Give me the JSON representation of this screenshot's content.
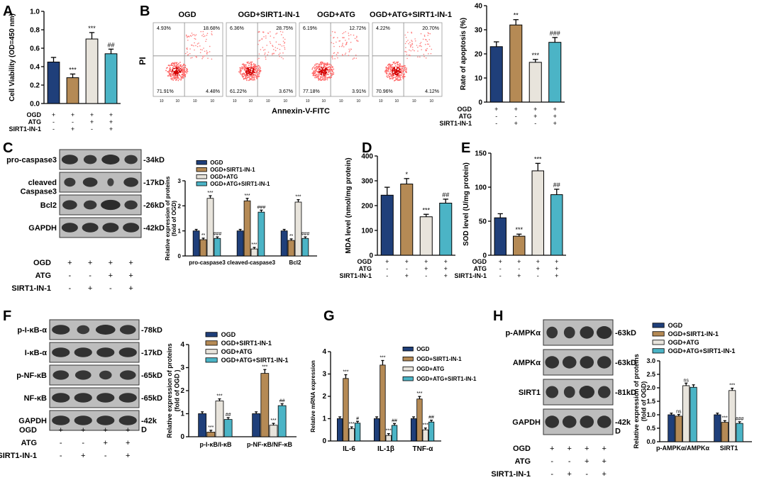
{
  "colors": {
    "OGD": "#1f3f7a",
    "OGD+SIRT1-IN-1": "#b58a55",
    "OGD+ATG": "#e8e1d2",
    "OGD+ATG+SIRT1-IN-1": "#4bb4c6",
    "white_bar": "#e8e4dc"
  },
  "groups": [
    "OGD",
    "OGD+SIRT1-IN-1",
    "OGD+ATG",
    "OGD+ATG+SIRT1-IN-1"
  ],
  "treatment_rows": {
    "labels": [
      "OGD",
      "ATG",
      "SIRT1-IN-1"
    ],
    "signs": [
      [
        "+",
        "+",
        "+",
        "+"
      ],
      [
        "-",
        "-",
        "+",
        "+"
      ],
      [
        "-",
        "+",
        "-",
        "+"
      ]
    ]
  },
  "panels": {
    "A": {
      "letter": "A"
    },
    "B": {
      "letter": "B",
      "flow_titles": [
        "OGD",
        "OGD+SIRT1-IN-1",
        "OGD+ATG",
        "OGD+ATG+SIRT1-IN-1"
      ],
      "quadrants": [
        [
          "4.93%",
          "18.68%",
          "71.91%",
          "4.48%"
        ],
        [
          "6.36%",
          "28.75%",
          "61.22%",
          "3.67%"
        ],
        [
          "6.19%",
          "12.72%",
          "77.18%",
          "3.91%"
        ],
        [
          "4.22%",
          "20.70%",
          "70.96%",
          "4.12%"
        ]
      ],
      "y_axis": "PI",
      "x_axis": "Annexin-V-FITC",
      "tick": "10"
    },
    "C": {
      "letter": "C",
      "blot_labels": [
        "pro-caspase3",
        "cleaved\nCaspase3",
        "Bcl2",
        "GAPDH"
      ],
      "kd": [
        "-34kD",
        "-17kD",
        "-26kD",
        "-42kD"
      ],
      "legend": [
        "OGD",
        "OGD+SIRT1-IN-1",
        "OGD+ATG",
        "OGD+ATG+SIRT1-IN-1"
      ]
    },
    "D": {
      "letter": "D"
    },
    "E": {
      "letter": "E"
    },
    "F": {
      "letter": "F",
      "blot_labels": [
        "p-I-κB-α",
        "I-κB-α",
        "p-NF-κB",
        "NF-κB",
        "GAPDH"
      ],
      "kd": [
        "-78kD",
        "-17kD",
        "-65kD",
        "-65kD",
        "-42k\nD"
      ]
    },
    "G": {
      "letter": "G"
    },
    "H": {
      "letter": "H",
      "blot_labels": [
        "p-AMPKα",
        "AMPKα",
        "SIRT1",
        "GAPDH"
      ],
      "kd": [
        "-63kD",
        "-63kD",
        "-81kD",
        "-42k\nD"
      ]
    }
  },
  "chart_data": [
    {
      "id": "A",
      "type": "bar",
      "ylabel": "Cell Viability (OD=450 nm)",
      "ylim": [
        0,
        1.0
      ],
      "yticks": [
        "0.0",
        "0.2",
        "0.4",
        "0.6",
        "0.8",
        "1.0"
      ],
      "values": [
        0.45,
        0.28,
        0.7,
        0.54
      ],
      "errors": [
        0.05,
        0.04,
        0.07,
        0.05
      ],
      "annotations": [
        "",
        "***",
        "***",
        "##"
      ]
    },
    {
      "id": "B",
      "type": "bar",
      "ylabel": "Rate of apoptosis (%)",
      "ylim": [
        0,
        40
      ],
      "yticks": [
        "0",
        "10",
        "20",
        "30",
        "40"
      ],
      "values": [
        23,
        32,
        16.5,
        24.8
      ],
      "errors": [
        2,
        2.2,
        1.2,
        2
      ],
      "annotations": [
        "",
        "**",
        "***",
        "###"
      ]
    },
    {
      "id": "C",
      "type": "bar",
      "ylabel": "Relative expression of proteins\n(fold of OGD)",
      "ylim": [
        0,
        3
      ],
      "yticks": [
        "0",
        "1",
        "2",
        "3"
      ],
      "categories": [
        "pro-caspase3",
        "cleaved-caspase3",
        "Bcl2"
      ],
      "series": [
        {
          "name": "OGD",
          "values": [
            1,
            1,
            1
          ]
        },
        {
          "name": "OGD+SIRT1-IN-1",
          "values": [
            0.65,
            2.2,
            0.62
          ]
        },
        {
          "name": "OGD+ATG",
          "values": [
            2.3,
            0.28,
            2.15
          ]
        },
        {
          "name": "OGD+ATG+SIRT1-IN-1",
          "values": [
            0.7,
            1.75,
            0.7
          ]
        }
      ],
      "annotations": [
        [
          "",
          "**",
          "***",
          "###"
        ],
        [
          "",
          "***",
          "***",
          "###"
        ],
        [
          "",
          "**",
          "***",
          "###"
        ]
      ]
    },
    {
      "id": "D",
      "type": "bar",
      "ylabel": "MDA level (nmol/mg protein)",
      "ylim": [
        0,
        400
      ],
      "yticks": [
        "0",
        "100",
        "200",
        "300",
        "400"
      ],
      "values": [
        242,
        287,
        155,
        210
      ],
      "errors": [
        32,
        22,
        10,
        16
      ],
      "annotations": [
        "",
        "*",
        "***",
        "##"
      ]
    },
    {
      "id": "E",
      "type": "bar",
      "ylabel": "SOD level (U/mg protein)",
      "ylim": [
        0,
        150
      ],
      "yticks": [
        "0",
        "50",
        "100",
        "150"
      ],
      "values": [
        55,
        28,
        124,
        89
      ],
      "errors": [
        6,
        3,
        11,
        8
      ],
      "annotations": [
        "",
        "***",
        "***",
        "##"
      ]
    },
    {
      "id": "F",
      "type": "bar",
      "ylabel": "Relative expression of proteins\n(fold of OGD )",
      "ylim": [
        0,
        4
      ],
      "yticks": [
        "0",
        "1",
        "2",
        "3",
        "4"
      ],
      "categories": [
        "p-I-κB/I-κB",
        "p-NF-κB/NF-κB"
      ],
      "series": [
        {
          "name": "OGD",
          "values": [
            1,
            1
          ]
        },
        {
          "name": "OGD+SIRT1-IN-1",
          "values": [
            0.2,
            2.75
          ]
        },
        {
          "name": "OGD+ATG",
          "values": [
            1.55,
            0.5
          ]
        },
        {
          "name": "OGD+ATG+SIRT1-IN-1",
          "values": [
            0.75,
            1.35
          ]
        }
      ],
      "annotations": [
        [
          "",
          "***",
          "***",
          "##"
        ],
        [
          "",
          "***",
          "***",
          "##"
        ]
      ]
    },
    {
      "id": "G",
      "type": "bar",
      "ylabel": "Relative mRNA expression",
      "ylim": [
        0,
        4
      ],
      "yticks": [
        "0",
        "1",
        "2",
        "3",
        "4"
      ],
      "categories": [
        "IL-6",
        "IL-1β",
        "TNF-α"
      ],
      "series": [
        {
          "name": "OGD",
          "values": [
            1,
            1,
            1
          ]
        },
        {
          "name": "OGD+SIRT1-IN-1",
          "values": [
            2.8,
            3.4,
            1.88
          ]
        },
        {
          "name": "OGD+ATG",
          "values": [
            0.55,
            0.25,
            0.5
          ]
        },
        {
          "name": "OGD+ATG+SIRT1-IN-1",
          "values": [
            0.8,
            0.7,
            0.85
          ]
        }
      ],
      "annotations": [
        [
          "",
          "***",
          "***",
          "#"
        ],
        [
          "",
          "***",
          "***",
          "##"
        ],
        [
          "",
          "***",
          "***",
          "##"
        ]
      ]
    },
    {
      "id": "H",
      "type": "bar",
      "ylabel": "Relative expression of proteins\n(fold of OGD)",
      "ylim": [
        0,
        3
      ],
      "yticks": [
        "0.0",
        "0.5",
        "1.0",
        "1.5",
        "2.0",
        "2.5",
        "3.0"
      ],
      "categories": [
        "p-AMPKα/AMPKα",
        "SIRT1"
      ],
      "series": [
        {
          "name": "OGD",
          "values": [
            1,
            1
          ]
        },
        {
          "name": "OGD+SIRT1-IN-1",
          "values": [
            0.95,
            0.72
          ]
        },
        {
          "name": "OGD+ATG",
          "values": [
            2.08,
            1.9
          ]
        },
        {
          "name": "OGD+ATG+SIRT1-IN-1",
          "values": [
            2.02,
            0.68
          ]
        }
      ],
      "annotations": [
        [
          "",
          "ns",
          "ns",
          ""
        ],
        [
          "",
          "***",
          "***",
          "###"
        ]
      ]
    }
  ]
}
